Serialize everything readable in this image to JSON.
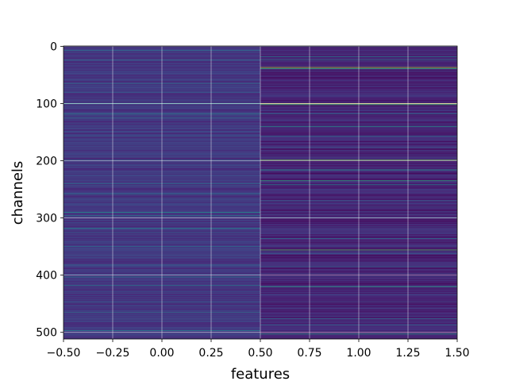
{
  "chart_data": {
    "type": "heatmap",
    "title": "",
    "xlabel": "features",
    "ylabel": "channels",
    "xlim": [
      -0.5,
      1.5
    ],
    "ylim": [
      511.5,
      -0.5
    ],
    "x_categories": [
      0,
      1
    ],
    "n_channels": 512,
    "x_ticks": [
      {
        "value": -0.5,
        "label": "−0.50"
      },
      {
        "value": -0.25,
        "label": "−0.25"
      },
      {
        "value": 0.0,
        "label": "0.00"
      },
      {
        "value": 0.25,
        "label": "0.25"
      },
      {
        "value": 0.5,
        "label": "0.50"
      },
      {
        "value": 0.75,
        "label": "0.75"
      },
      {
        "value": 1.0,
        "label": "1.00"
      },
      {
        "value": 1.25,
        "label": "1.25"
      },
      {
        "value": 1.5,
        "label": "1.50"
      }
    ],
    "y_ticks": [
      {
        "value": 0,
        "label": "0"
      },
      {
        "value": 100,
        "label": "100"
      },
      {
        "value": 200,
        "label": "200"
      },
      {
        "value": 300,
        "label": "300"
      },
      {
        "value": 400,
        "label": "400"
      },
      {
        "value": 500,
        "label": "500"
      }
    ],
    "grid": true,
    "colormap": "viridis",
    "colormap_stops": [
      "#440154",
      "#482878",
      "#3e4989",
      "#31688e",
      "#26828e",
      "#1f9e89",
      "#35b779",
      "#6ece58",
      "#b5de2b",
      "#fde725"
    ],
    "bright_channels": {
      "feature_0": [
        {
          "channel": 7,
          "value": 0.35
        },
        {
          "channel": 24,
          "value": 0.32
        },
        {
          "channel": 65,
          "value": 0.4
        },
        {
          "channel": 80,
          "value": 0.3
        },
        {
          "channel": 100,
          "value": 0.55
        },
        {
          "channel": 118,
          "value": 0.45
        },
        {
          "channel": 125,
          "value": 0.38
        },
        {
          "channel": 157,
          "value": 0.3
        },
        {
          "channel": 199,
          "value": 0.35
        },
        {
          "channel": 240,
          "value": 0.35
        },
        {
          "channel": 258,
          "value": 0.4
        },
        {
          "channel": 290,
          "value": 0.5
        },
        {
          "channel": 296,
          "value": 0.4
        },
        {
          "channel": 318,
          "value": 0.45
        },
        {
          "channel": 325,
          "value": 0.3
        },
        {
          "channel": 350,
          "value": 0.35
        },
        {
          "channel": 382,
          "value": 0.32
        },
        {
          "channel": 403,
          "value": 0.4
        },
        {
          "channel": 418,
          "value": 0.38
        },
        {
          "channel": 447,
          "value": 0.3
        },
        {
          "channel": 465,
          "value": 0.35
        },
        {
          "channel": 497,
          "value": 0.45
        }
      ],
      "feature_1": [
        {
          "channel": 18,
          "value": 0.42
        },
        {
          "channel": 24,
          "value": 0.38
        },
        {
          "channel": 37,
          "value": 0.88
        },
        {
          "channel": 39,
          "value": 0.6
        },
        {
          "channel": 100,
          "value": 0.97
        },
        {
          "channel": 102,
          "value": 0.7
        },
        {
          "channel": 118,
          "value": 0.35
        },
        {
          "channel": 140,
          "value": 0.5
        },
        {
          "channel": 157,
          "value": 0.35
        },
        {
          "channel": 177,
          "value": 0.3
        },
        {
          "channel": 199,
          "value": 0.8
        },
        {
          "channel": 216,
          "value": 0.55
        },
        {
          "channel": 235,
          "value": 0.62
        },
        {
          "channel": 242,
          "value": 0.45
        },
        {
          "channel": 270,
          "value": 0.32
        },
        {
          "channel": 300,
          "value": 0.35
        },
        {
          "channel": 336,
          "value": 0.38
        },
        {
          "channel": 356,
          "value": 0.72
        },
        {
          "channel": 362,
          "value": 0.3
        },
        {
          "channel": 385,
          "value": 0.3
        },
        {
          "channel": 420,
          "value": 0.6
        },
        {
          "channel": 476,
          "value": 0.32
        },
        {
          "channel": 487,
          "value": 0.35
        },
        {
          "channel": 503,
          "value": 0.55
        }
      ]
    }
  }
}
